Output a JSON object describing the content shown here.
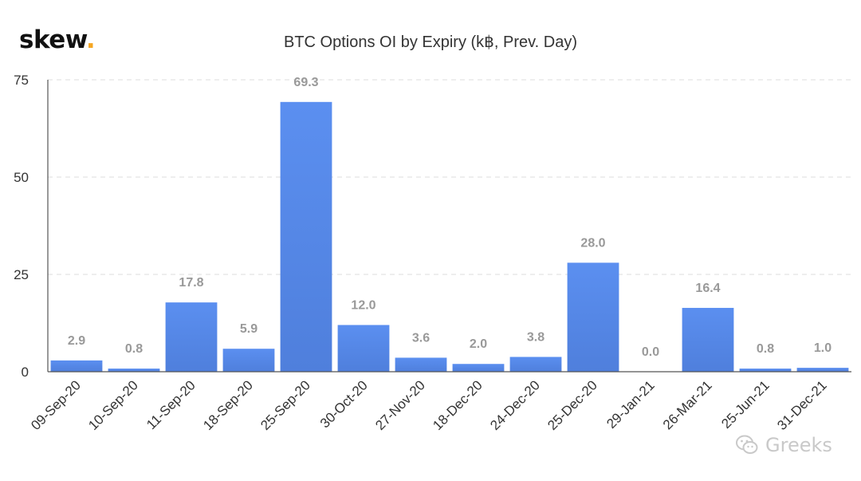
{
  "logo": {
    "text": "skew",
    "dot": "."
  },
  "watermark": {
    "text": "Greeks",
    "icon": "wechat-icon"
  },
  "colors": {
    "bar": "#5b8ff0",
    "bar_dark": "#4f7fdc",
    "label": "#999999",
    "axis": "#555555",
    "grid": "#e3e3e3",
    "logo_dot": "#f5a623"
  },
  "chart_data": {
    "type": "bar",
    "title": "BTC Options OI by Expiry (k฿, Prev. Day)",
    "xlabel": "",
    "ylabel": "",
    "ylim": [
      0,
      75
    ],
    "yticks": [
      0,
      25,
      50,
      75
    ],
    "grid": true,
    "categories": [
      "09-Sep-20",
      "10-Sep-20",
      "11-Sep-20",
      "18-Sep-20",
      "25-Sep-20",
      "30-Oct-20",
      "27-Nov-20",
      "18-Dec-20",
      "24-Dec-20",
      "25-Dec-20",
      "29-Jan-21",
      "26-Mar-21",
      "25-Jun-21",
      "31-Dec-21"
    ],
    "values": [
      2.9,
      0.8,
      17.8,
      5.9,
      69.3,
      12.0,
      3.6,
      2.0,
      3.8,
      28.0,
      0.0,
      16.4,
      0.8,
      1.0
    ],
    "value_labels": [
      "2.9",
      "0.8",
      "17.8",
      "5.9",
      "69.3",
      "12.0",
      "3.6",
      "2.0",
      "3.8",
      "28.0",
      "0.0",
      "16.4",
      "0.8",
      "1.0"
    ]
  }
}
